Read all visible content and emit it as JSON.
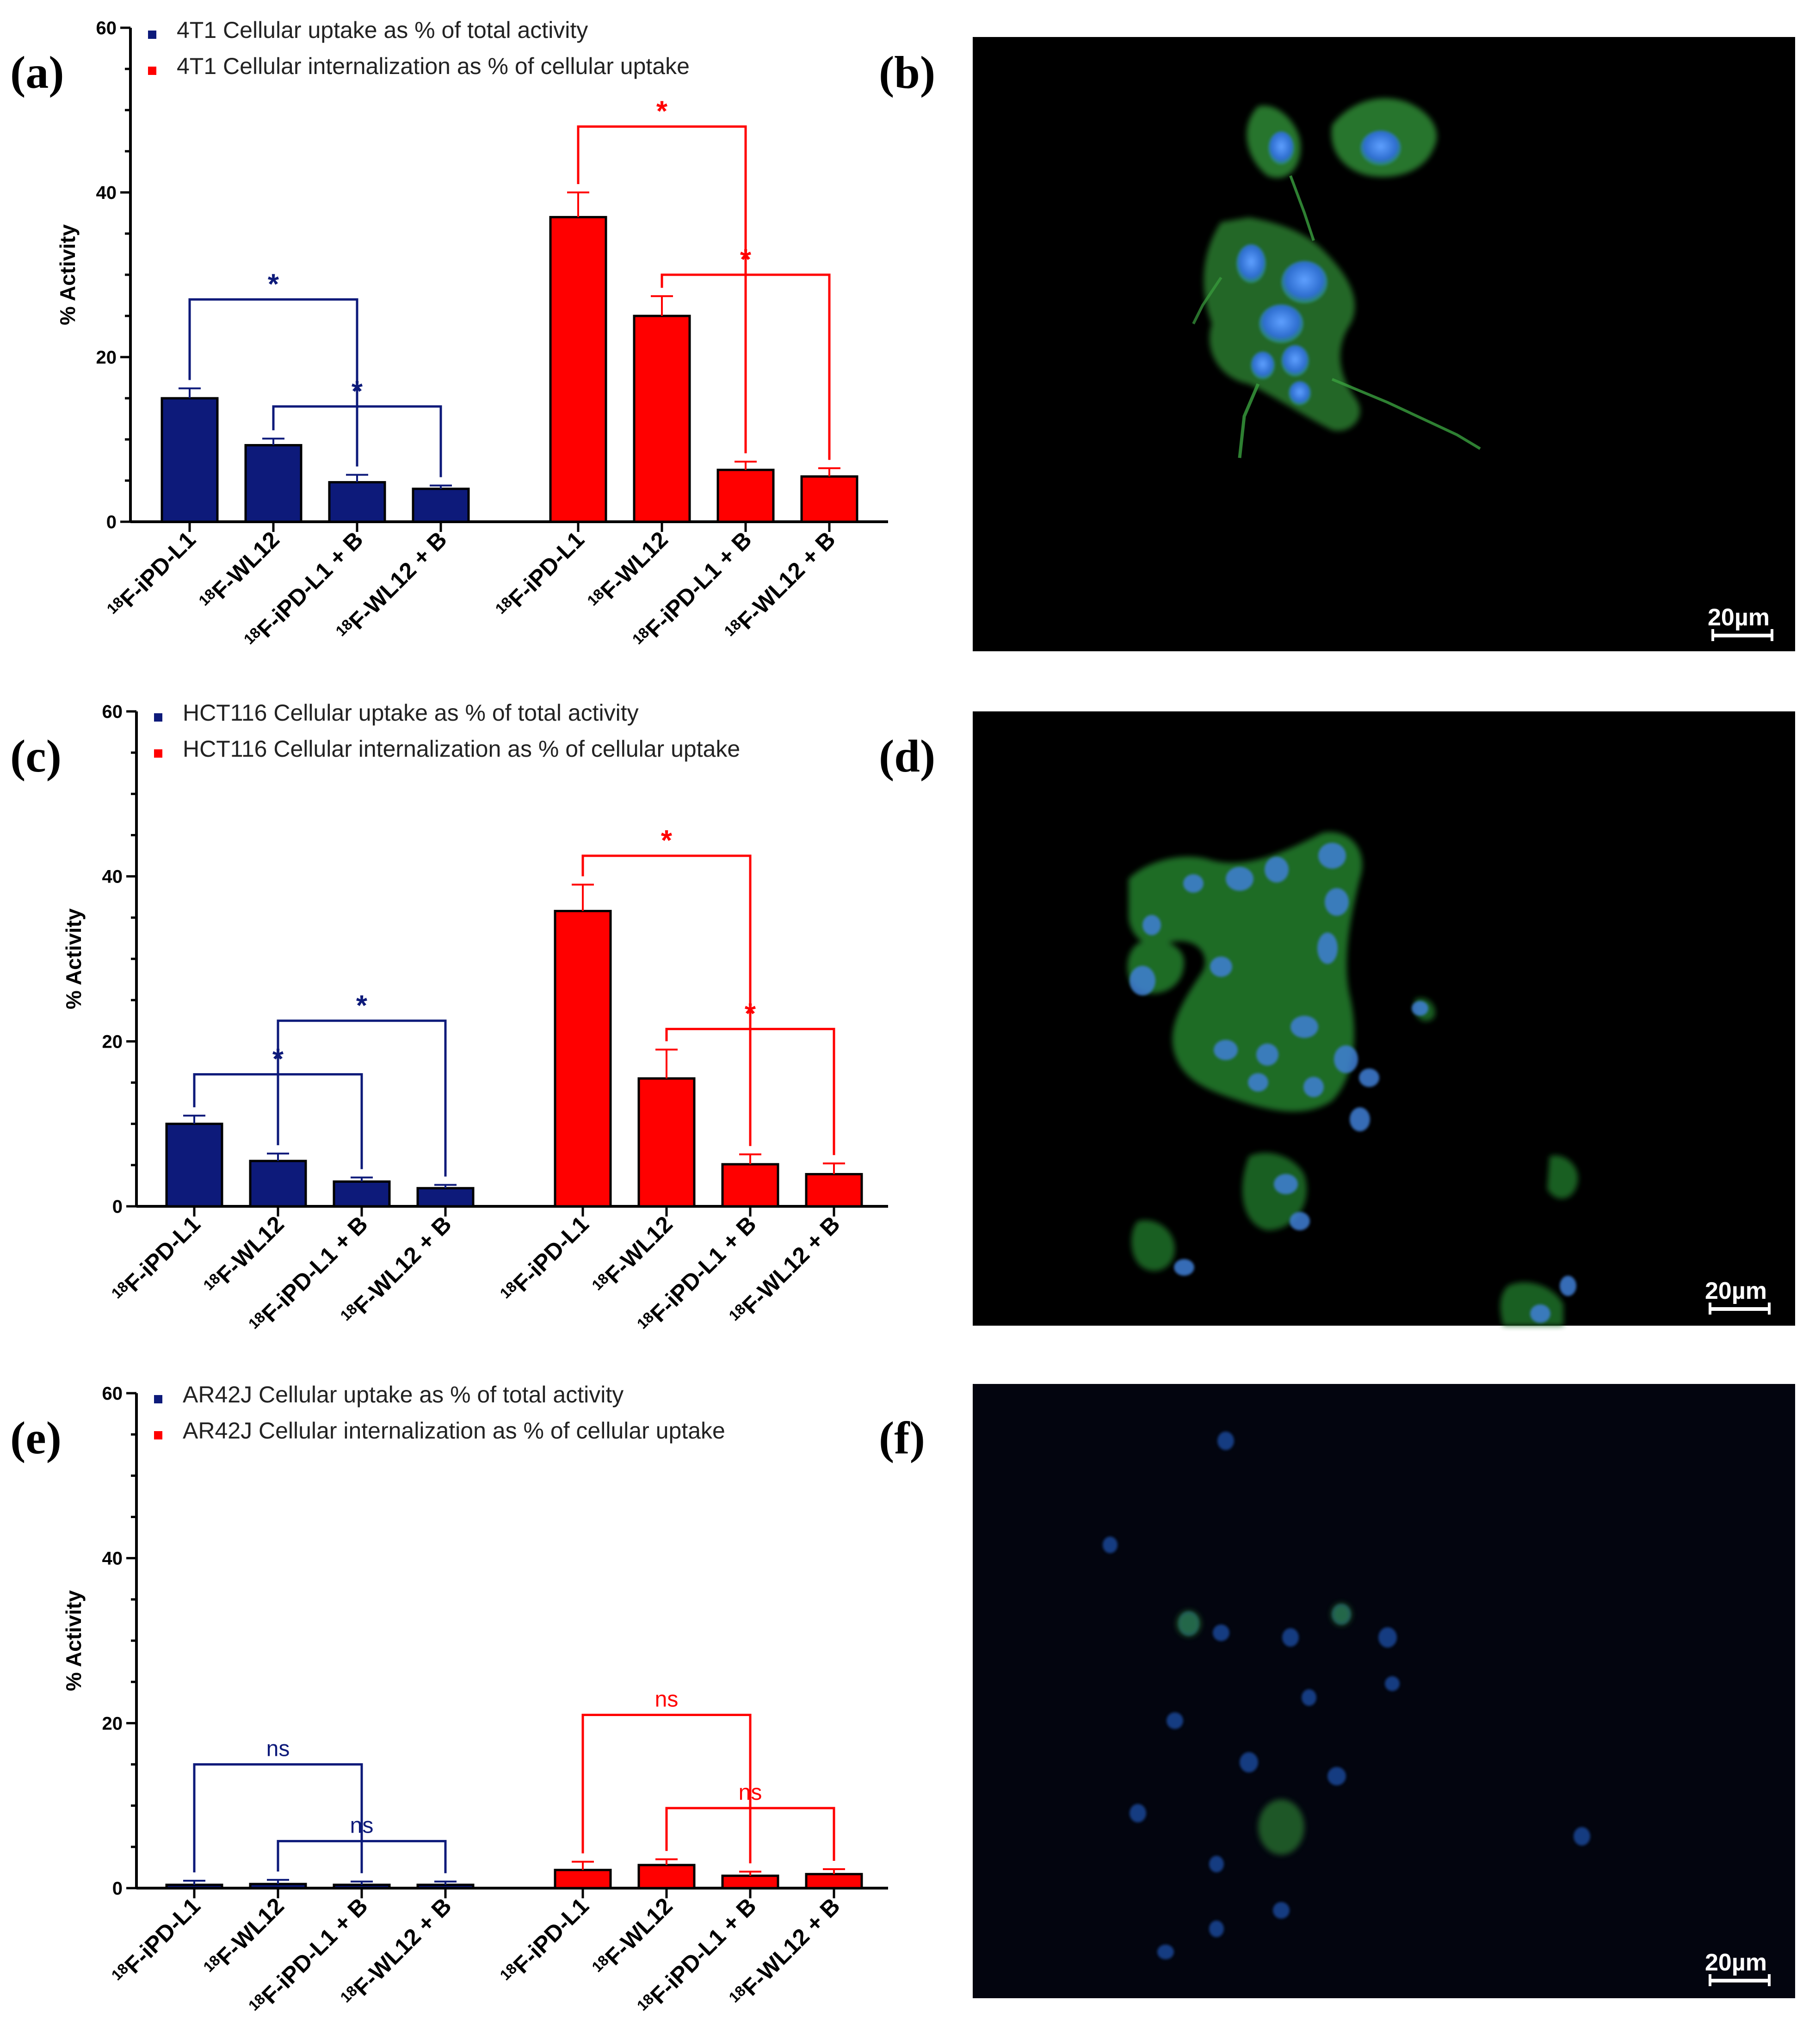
{
  "panel_labels": {
    "a": "(a)",
    "b": "(b)",
    "c": "(c)",
    "d": "(d)",
    "e": "(e)",
    "f": "(f)"
  },
  "colors": {
    "uptake": "#0d1a7a",
    "internalization": "#ff0000",
    "cell_green": "#2f9a3a",
    "nuclei_blue": "#3f7fd6",
    "background": "#000000"
  },
  "scale_bar_label": "20µm",
  "chart_data": [
    {
      "type": "bar",
      "panel": "a",
      "ylabel": "% Activity",
      "ylim": [
        0,
        60
      ],
      "yticks": [
        0,
        20,
        40,
        60
      ],
      "grid": false,
      "legend_position": "top-left",
      "category_prefix": "18",
      "categories": [
        "F-iPD-L1",
        "F-WL12",
        "F-iPD-L1 + B",
        "F-WL12 + B"
      ],
      "series": [
        {
          "name": "4T1 Cellular uptake as % of total activity",
          "color": "#0d1a7a",
          "values": [
            15,
            9.3,
            4.8,
            4
          ],
          "errors": [
            1.2,
            0.8,
            0.9,
            0.4
          ]
        },
        {
          "name": "4T1 Cellular internalization as % of cellular uptake",
          "color": "#ff0000",
          "values": [
            37,
            25,
            6.3,
            5.5
          ],
          "errors": [
            3,
            2.4,
            1,
            1
          ]
        }
      ],
      "brackets": [
        {
          "series": 0,
          "from": 0,
          "to": 2,
          "y": 27,
          "label": "*"
        },
        {
          "series": 0,
          "from": 1,
          "to": 3,
          "y": 14,
          "label": "*"
        },
        {
          "series": 1,
          "from": 0,
          "to": 2,
          "y": 48,
          "label": "*"
        },
        {
          "series": 1,
          "from": 1,
          "to": 3,
          "y": 30,
          "label": "*"
        }
      ]
    },
    {
      "type": "bar",
      "panel": "c",
      "ylabel": "% Activity",
      "ylim": [
        0,
        60
      ],
      "yticks": [
        0,
        20,
        40,
        60
      ],
      "grid": false,
      "legend_position": "top-left",
      "category_prefix": "18",
      "categories": [
        "F-iPD-L1",
        "F-WL12",
        "F-iPD-L1 + B",
        "F-WL12 + B"
      ],
      "series": [
        {
          "name": "HCT116 Cellular uptake as % of total activity",
          "color": "#0d1a7a",
          "values": [
            10,
            5.5,
            3,
            2.2
          ],
          "errors": [
            1,
            0.9,
            0.5,
            0.4
          ]
        },
        {
          "name": "HCT116 Cellular internalization as % of cellular uptake",
          "color": "#ff0000",
          "values": [
            35.8,
            15.5,
            5.1,
            3.9
          ],
          "errors": [
            3.2,
            3.5,
            1.2,
            1.3
          ]
        }
      ],
      "brackets": [
        {
          "series": 0,
          "from": 0,
          "to": 2,
          "y": 16,
          "label": "*"
        },
        {
          "series": 0,
          "from": 1,
          "to": 3,
          "y": 22.5,
          "label": "*"
        },
        {
          "series": 1,
          "from": 0,
          "to": 2,
          "y": 42.5,
          "label": "*"
        },
        {
          "series": 1,
          "from": 1,
          "to": 3,
          "y": 21.5,
          "label": "*"
        }
      ]
    },
    {
      "type": "bar",
      "panel": "e",
      "ylabel": "% Activity",
      "ylim": [
        0,
        60
      ],
      "yticks": [
        0,
        20,
        40,
        60
      ],
      "grid": false,
      "legend_position": "top-left",
      "category_prefix": "18",
      "categories": [
        "F-iPD-L1",
        "F-WL12",
        "F-iPD-L1 + B",
        "F-WL12 + B"
      ],
      "series": [
        {
          "name": "AR42J Cellular uptake as % of total activity",
          "color": "#0d1a7a",
          "values": [
            0.4,
            0.5,
            0.4,
            0.4
          ],
          "errors": [
            0.5,
            0.5,
            0.4,
            0.4
          ]
        },
        {
          "name": "AR42J Cellular internalization as % of cellular uptake",
          "color": "#ff0000",
          "values": [
            2.2,
            2.8,
            1.5,
            1.7
          ],
          "errors": [
            1,
            0.7,
            0.5,
            0.6
          ]
        }
      ],
      "brackets": [
        {
          "series": 0,
          "from": 0,
          "to": 2,
          "y": 15,
          "label": "ns"
        },
        {
          "series": 0,
          "from": 1,
          "to": 3,
          "y": 5.7,
          "label": "ns"
        },
        {
          "series": 1,
          "from": 0,
          "to": 2,
          "y": 21,
          "label": "ns"
        },
        {
          "series": 1,
          "from": 1,
          "to": 3,
          "y": 9.7,
          "label": "ns"
        }
      ]
    }
  ]
}
